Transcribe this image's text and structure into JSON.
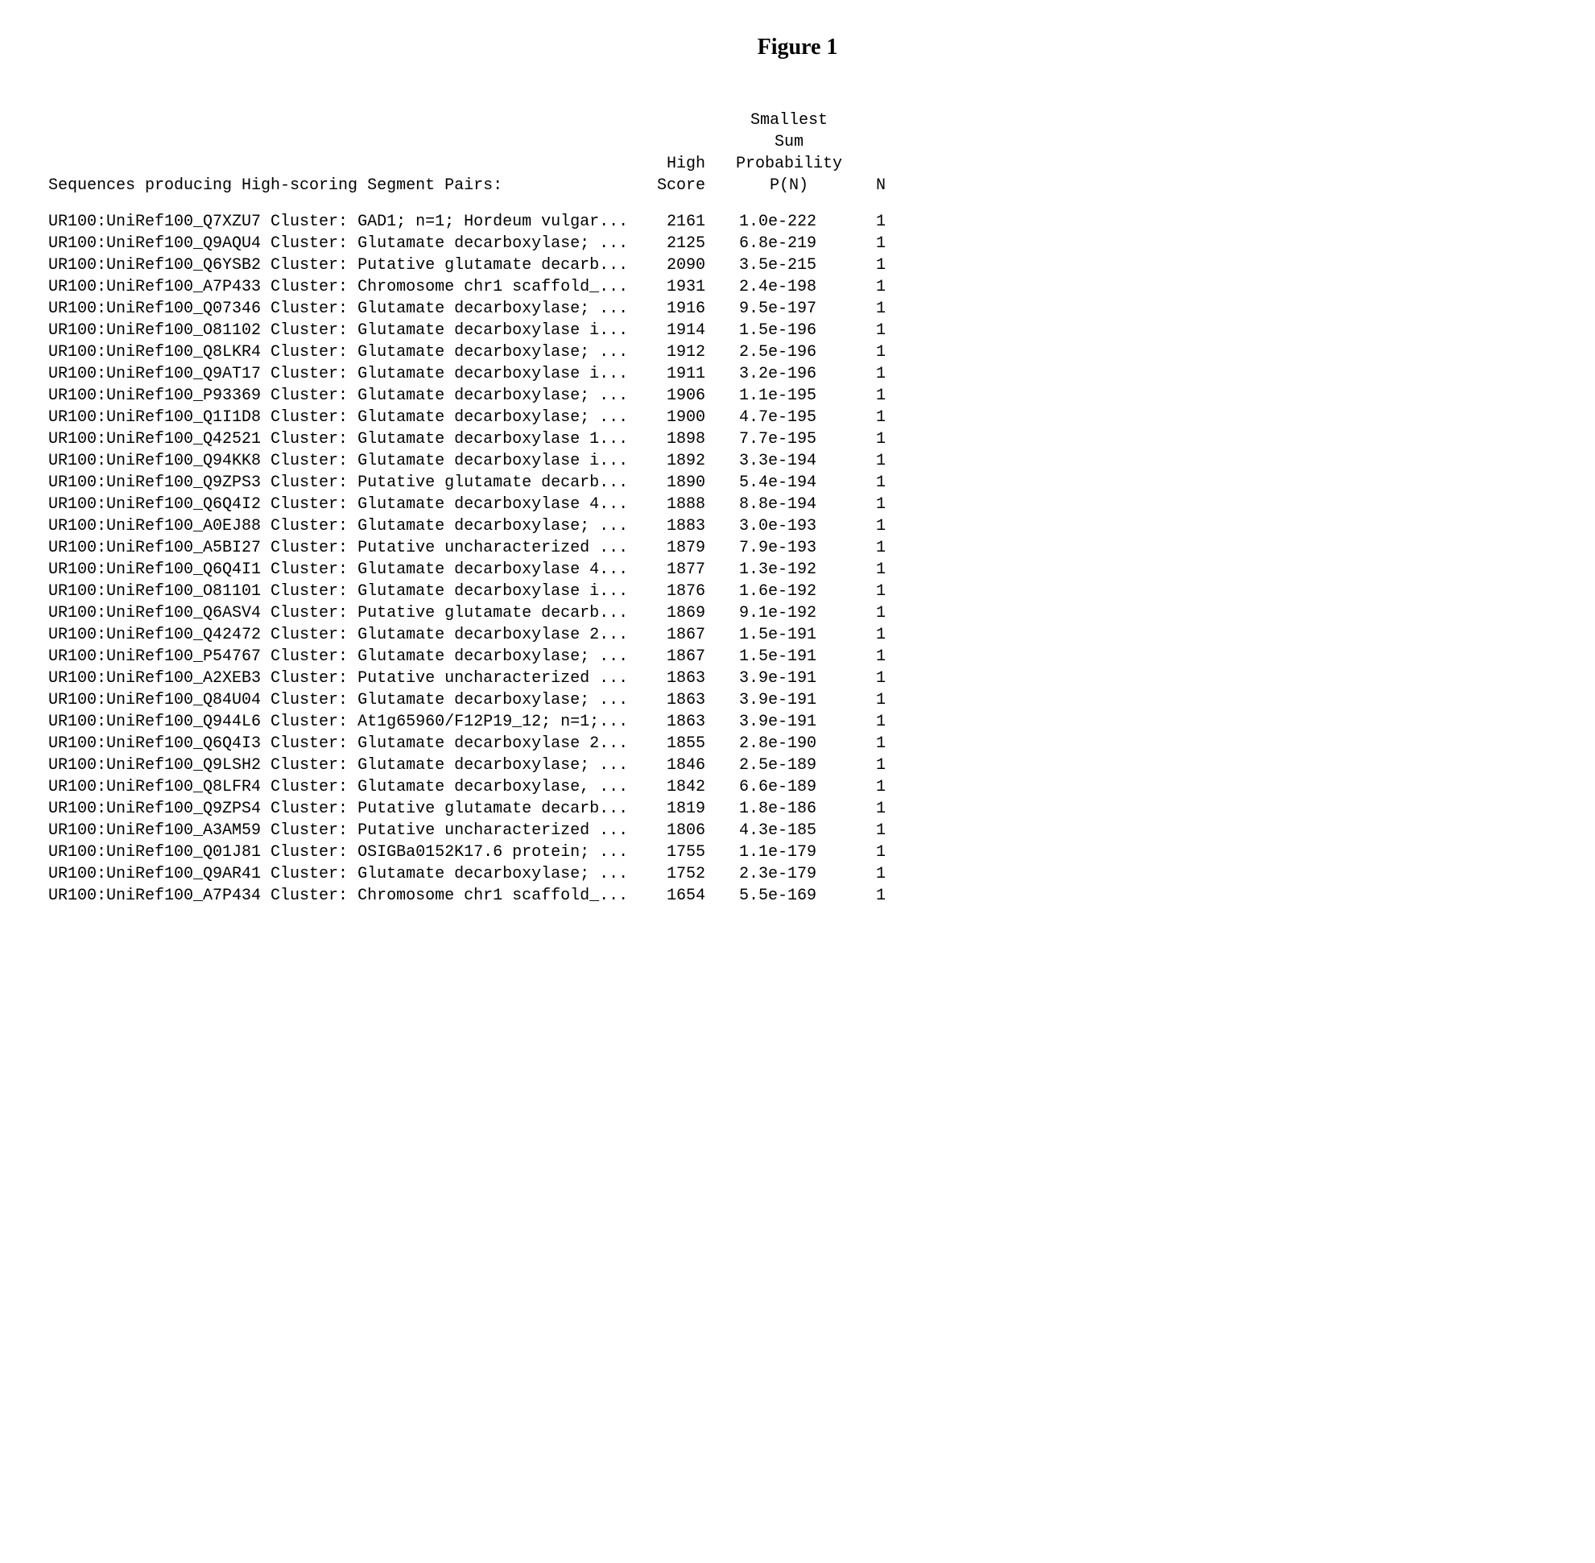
{
  "figure_title": "Figure 1",
  "headers": {
    "left_line": "Sequences producing High-scoring Segment Pairs:",
    "score_top": "High",
    "score_bot": "Score",
    "prob_top1": "Smallest",
    "prob_top2": "Sum",
    "prob_top3": "Probability",
    "prob_bot": "P(N)",
    "n": "N"
  },
  "rows": [
    {
      "seq": "UR100:UniRef100_Q7XZU7 Cluster: GAD1; n=1; Hordeum vulgar...",
      "score": "2161",
      "prob": "1.0e-222",
      "n": "1"
    },
    {
      "seq": "UR100:UniRef100_Q9AQU4 Cluster: Glutamate decarboxylase; ...",
      "score": "2125",
      "prob": "6.8e-219",
      "n": "1"
    },
    {
      "seq": "UR100:UniRef100_Q6YSB2 Cluster: Putative glutamate decarb...",
      "score": "2090",
      "prob": "3.5e-215",
      "n": "1"
    },
    {
      "seq": "UR100:UniRef100_A7P433 Cluster: Chromosome chr1 scaffold_...",
      "score": "1931",
      "prob": "2.4e-198",
      "n": "1"
    },
    {
      "seq": "UR100:UniRef100_Q07346 Cluster: Glutamate decarboxylase; ...",
      "score": "1916",
      "prob": "9.5e-197",
      "n": "1"
    },
    {
      "seq": "UR100:UniRef100_O81102 Cluster: Glutamate decarboxylase i...",
      "score": "1914",
      "prob": "1.5e-196",
      "n": "1"
    },
    {
      "seq": "UR100:UniRef100_Q8LKR4 Cluster: Glutamate decarboxylase; ...",
      "score": "1912",
      "prob": "2.5e-196",
      "n": "1"
    },
    {
      "seq": "UR100:UniRef100_Q9AT17 Cluster: Glutamate decarboxylase i...",
      "score": "1911",
      "prob": "3.2e-196",
      "n": "1"
    },
    {
      "seq": "UR100:UniRef100_P93369 Cluster: Glutamate decarboxylase; ...",
      "score": "1906",
      "prob": "1.1e-195",
      "n": "1"
    },
    {
      "seq": "UR100:UniRef100_Q1I1D8 Cluster: Glutamate decarboxylase; ...",
      "score": "1900",
      "prob": "4.7e-195",
      "n": "1"
    },
    {
      "seq": "UR100:UniRef100_Q42521 Cluster: Glutamate decarboxylase 1...",
      "score": "1898",
      "prob": "7.7e-195",
      "n": "1"
    },
    {
      "seq": "UR100:UniRef100_Q94KK8 Cluster: Glutamate decarboxylase i...",
      "score": "1892",
      "prob": "3.3e-194",
      "n": "1"
    },
    {
      "seq": "UR100:UniRef100_Q9ZPS3 Cluster: Putative glutamate decarb...",
      "score": "1890",
      "prob": "5.4e-194",
      "n": "1"
    },
    {
      "seq": "UR100:UniRef100_Q6Q4I2 Cluster: Glutamate decarboxylase 4...",
      "score": "1888",
      "prob": "8.8e-194",
      "n": "1"
    },
    {
      "seq": "UR100:UniRef100_A0EJ88 Cluster: Glutamate decarboxylase; ...",
      "score": "1883",
      "prob": "3.0e-193",
      "n": "1"
    },
    {
      "seq": "UR100:UniRef100_A5BI27 Cluster: Putative uncharacterized ...",
      "score": "1879",
      "prob": "7.9e-193",
      "n": "1"
    },
    {
      "seq": "UR100:UniRef100_Q6Q4I1 Cluster: Glutamate decarboxylase 4...",
      "score": "1877",
      "prob": "1.3e-192",
      "n": "1"
    },
    {
      "seq": "UR100:UniRef100_O81101 Cluster: Glutamate decarboxylase i...",
      "score": "1876",
      "prob": "1.6e-192",
      "n": "1"
    },
    {
      "seq": "UR100:UniRef100_Q6ASV4 Cluster: Putative glutamate decarb...",
      "score": "1869",
      "prob": "9.1e-192",
      "n": "1"
    },
    {
      "seq": "UR100:UniRef100_Q42472 Cluster: Glutamate decarboxylase 2...",
      "score": "1867",
      "prob": "1.5e-191",
      "n": "1"
    },
    {
      "seq": "UR100:UniRef100_P54767 Cluster: Glutamate decarboxylase; ...",
      "score": "1867",
      "prob": "1.5e-191",
      "n": "1"
    },
    {
      "seq": "UR100:UniRef100_A2XEB3 Cluster: Putative uncharacterized ...",
      "score": "1863",
      "prob": "3.9e-191",
      "n": "1"
    },
    {
      "seq": "UR100:UniRef100_Q84U04 Cluster: Glutamate decarboxylase; ...",
      "score": "1863",
      "prob": "3.9e-191",
      "n": "1"
    },
    {
      "seq": "UR100:UniRef100_Q944L6 Cluster: At1g65960/F12P19_12; n=1;...",
      "score": "1863",
      "prob": "3.9e-191",
      "n": "1"
    },
    {
      "seq": "UR100:UniRef100_Q6Q4I3 Cluster: Glutamate decarboxylase 2...",
      "score": "1855",
      "prob": "2.8e-190",
      "n": "1"
    },
    {
      "seq": "UR100:UniRef100_Q9LSH2 Cluster: Glutamate decarboxylase; ...",
      "score": "1846",
      "prob": "2.5e-189",
      "n": "1"
    },
    {
      "seq": "UR100:UniRef100_Q8LFR4 Cluster: Glutamate decarboxylase, ...",
      "score": "1842",
      "prob": "6.6e-189",
      "n": "1"
    },
    {
      "seq": "UR100:UniRef100_Q9ZPS4 Cluster: Putative glutamate decarb...",
      "score": "1819",
      "prob": "1.8e-186",
      "n": "1"
    },
    {
      "seq": "UR100:UniRef100_A3AM59 Cluster: Putative uncharacterized ...",
      "score": "1806",
      "prob": "4.3e-185",
      "n": "1"
    },
    {
      "seq": "UR100:UniRef100_Q01J81 Cluster: OSIGBa0152K17.6 protein; ...",
      "score": "1755",
      "prob": "1.1e-179",
      "n": "1"
    },
    {
      "seq": "UR100:UniRef100_Q9AR41 Cluster: Glutamate decarboxylase; ...",
      "score": "1752",
      "prob": "2.3e-179",
      "n": "1"
    },
    {
      "seq": "UR100:UniRef100_A7P434 Cluster: Chromosome chr1 scaffold_...",
      "score": "1654",
      "prob": "5.5e-169",
      "n": "1"
    }
  ]
}
